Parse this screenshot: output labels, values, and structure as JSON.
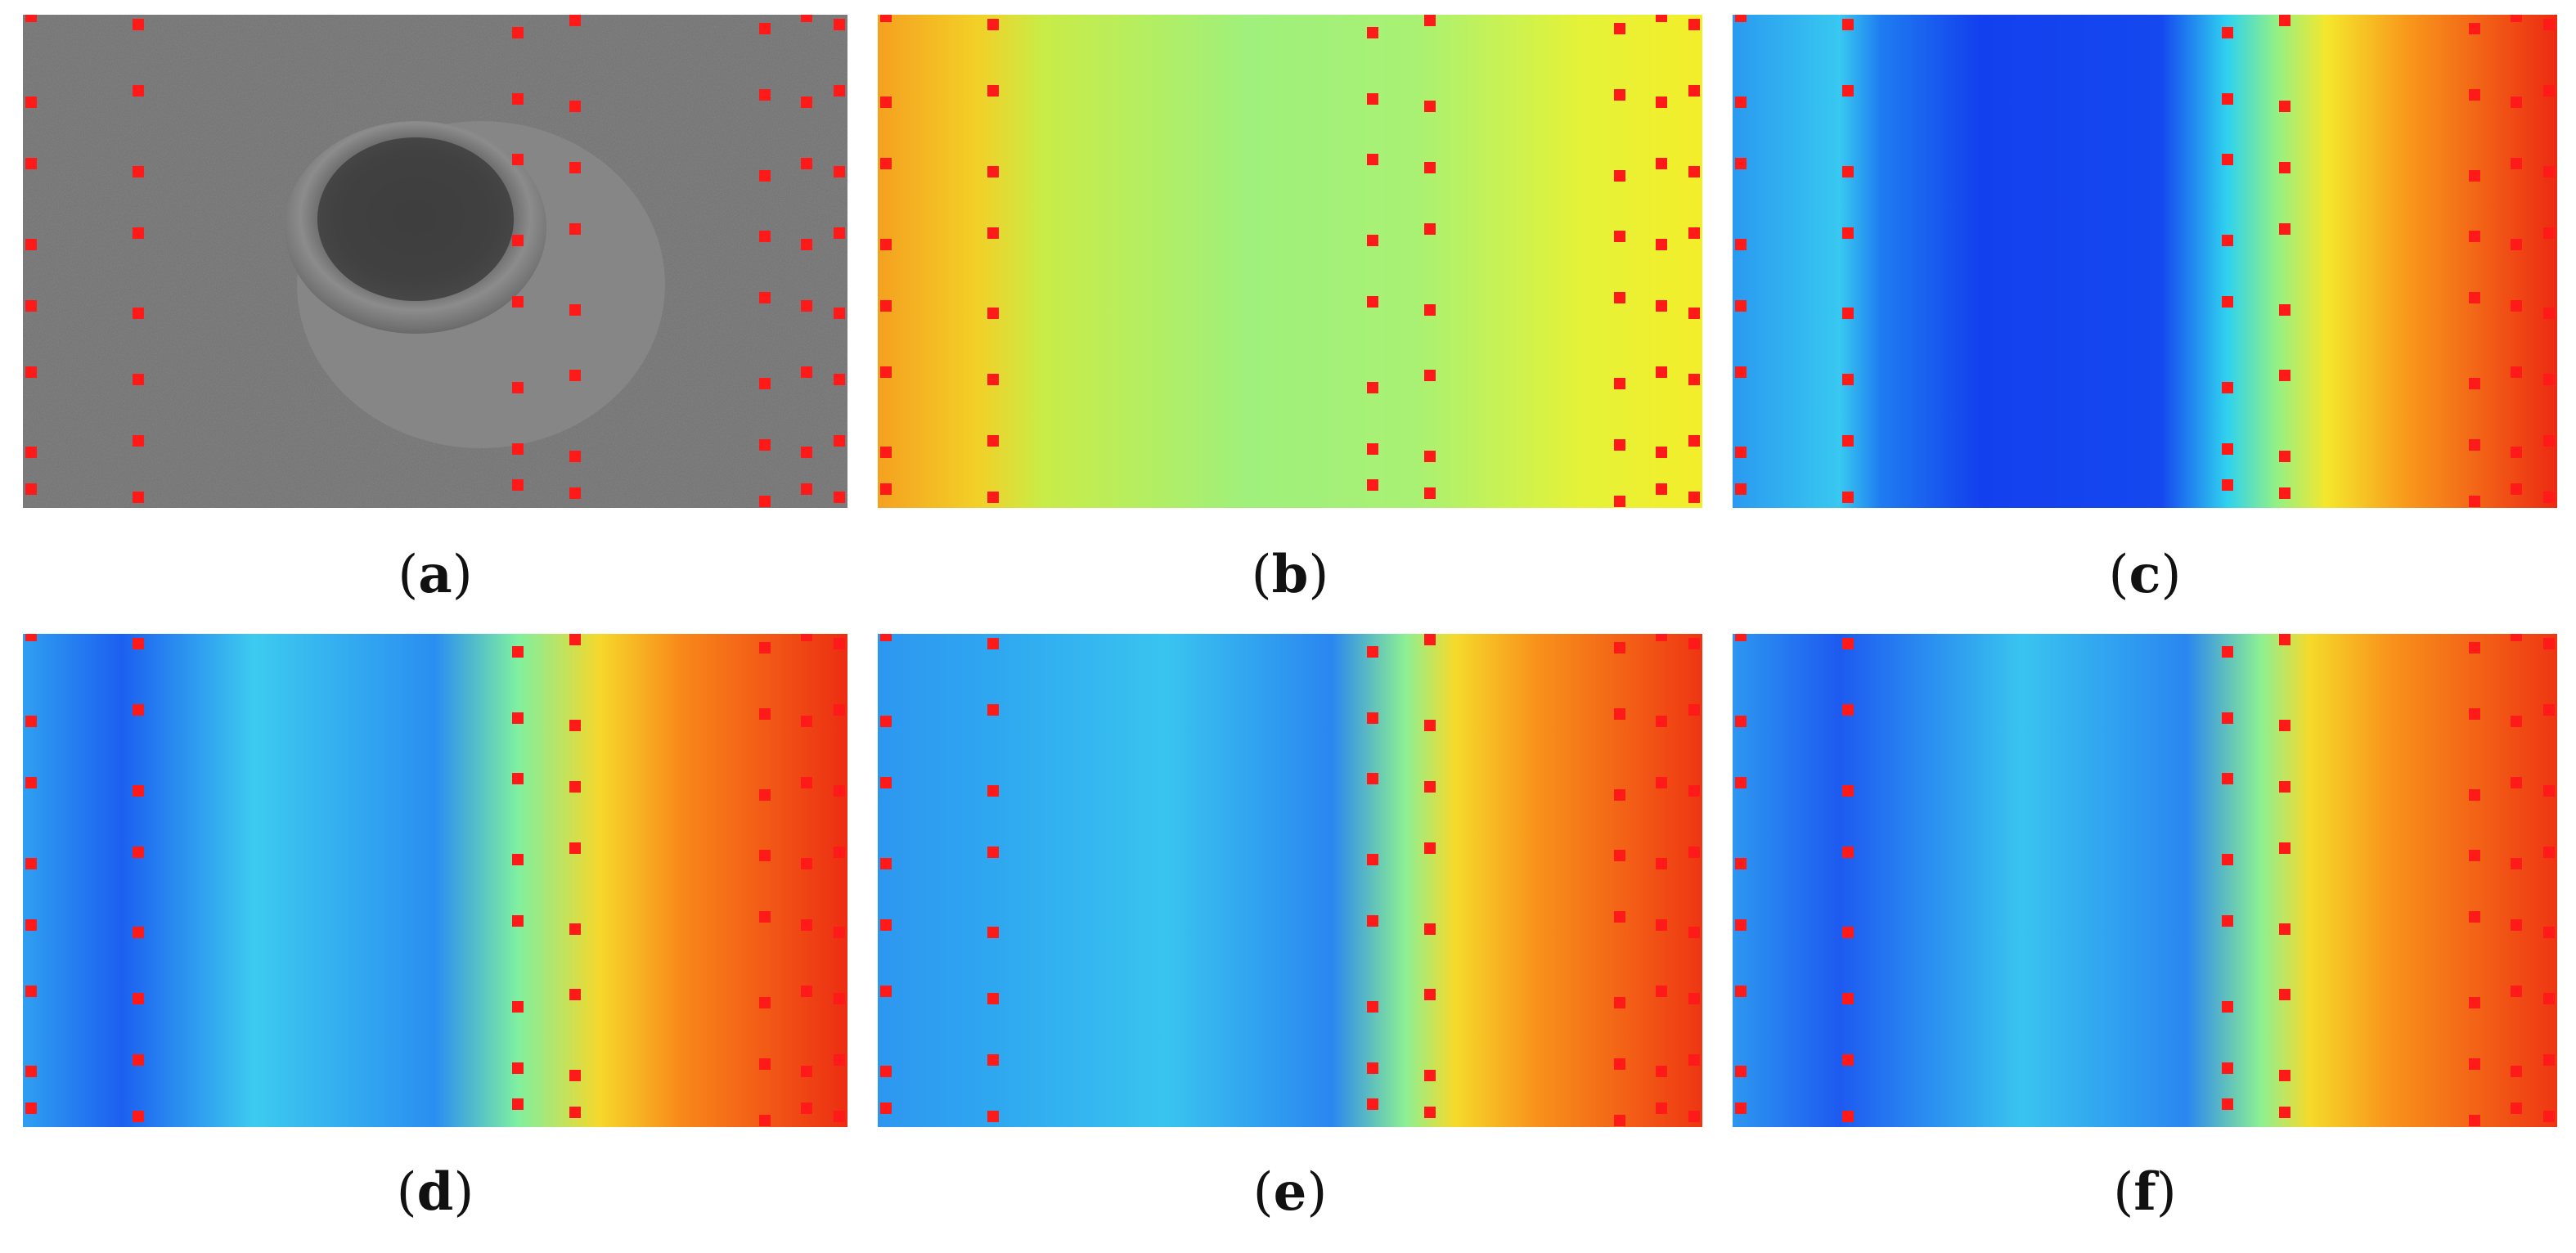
{
  "figure": {
    "panels": [
      {
        "id": "a",
        "caption_letter": "a",
        "kind": "grayscale-lunar-image"
      },
      {
        "id": "b",
        "caption_letter": "b",
        "kind": "heatmap-yellow-green"
      },
      {
        "id": "c",
        "caption_letter": "c",
        "kind": "heatmap-blue-red"
      },
      {
        "id": "d",
        "caption_letter": "d",
        "kind": "heatmap-blue-red"
      },
      {
        "id": "e",
        "caption_letter": "e",
        "kind": "heatmap-blue-red"
      },
      {
        "id": "f",
        "caption_letter": "f",
        "kind": "heatmap-blue-red"
      }
    ],
    "marker_color": "#ff1a1a"
  },
  "colormap": {
    "blue": "#1444f0",
    "cyan": "#23d6f0",
    "green": "#8df08a",
    "yellow": "#f7ef2a",
    "orange": "#fb9a1a",
    "red": "#ee2b12"
  }
}
